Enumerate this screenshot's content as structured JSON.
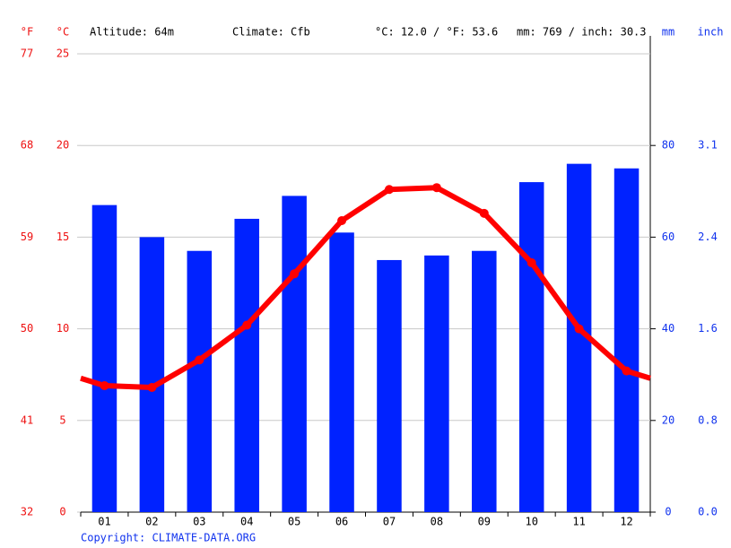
{
  "chart_data": {
    "type": "climate",
    "header": {
      "f_unit": "°F",
      "c_unit": "°C",
      "altitude": "Altitude: 64m",
      "climate": "Climate: Cfb",
      "temp_avg": "°C: 12.0 / °F: 53.6",
      "precip_total": "mm: 769 / inch: 30.3",
      "mm_unit": "mm",
      "inch_unit": "inch"
    },
    "copyright": "Copyright: CLIMATE-DATA.ORG",
    "categories": [
      "01",
      "02",
      "03",
      "04",
      "05",
      "06",
      "07",
      "08",
      "09",
      "10",
      "11",
      "12"
    ],
    "series": [
      {
        "name": "Precipitation (mm)",
        "color": "#0022ff",
        "axis": "y2",
        "kind": "bar",
        "values": [
          67,
          60,
          57,
          64,
          69,
          61,
          55,
          56,
          57,
          72,
          76,
          75
        ]
      },
      {
        "name": "Temperature (°C)",
        "color": "#ff0000",
        "kind": "line",
        "values": [
          6.9,
          6.8,
          8.3,
          10.2,
          13.0,
          15.9,
          17.6,
          17.7,
          16.3,
          13.6,
          10.0,
          7.7
        ]
      }
    ],
    "ylim": [
      0,
      25
    ],
    "yticks": [
      0,
      5,
      10,
      15,
      20,
      25
    ],
    "yticks_f": [
      {
        "value": 0,
        "label": "32"
      },
      {
        "value": 5,
        "label": "41"
      },
      {
        "value": 10,
        "label": "50"
      },
      {
        "value": 15,
        "label": "59"
      },
      {
        "value": 20,
        "label": "68"
      },
      {
        "value": 25,
        "label": "77"
      }
    ],
    "y2lim": [
      0,
      100
    ],
    "y2ticks": [
      0,
      20,
      40,
      60,
      80
    ],
    "y2ticks_inch": [
      {
        "value": 0,
        "label": "0.0"
      },
      {
        "value": 20,
        "label": "0.8"
      },
      {
        "value": 40,
        "label": "1.6"
      },
      {
        "value": 60,
        "label": "2.4"
      },
      {
        "value": 80,
        "label": "3.1"
      }
    ],
    "grid": true
  }
}
